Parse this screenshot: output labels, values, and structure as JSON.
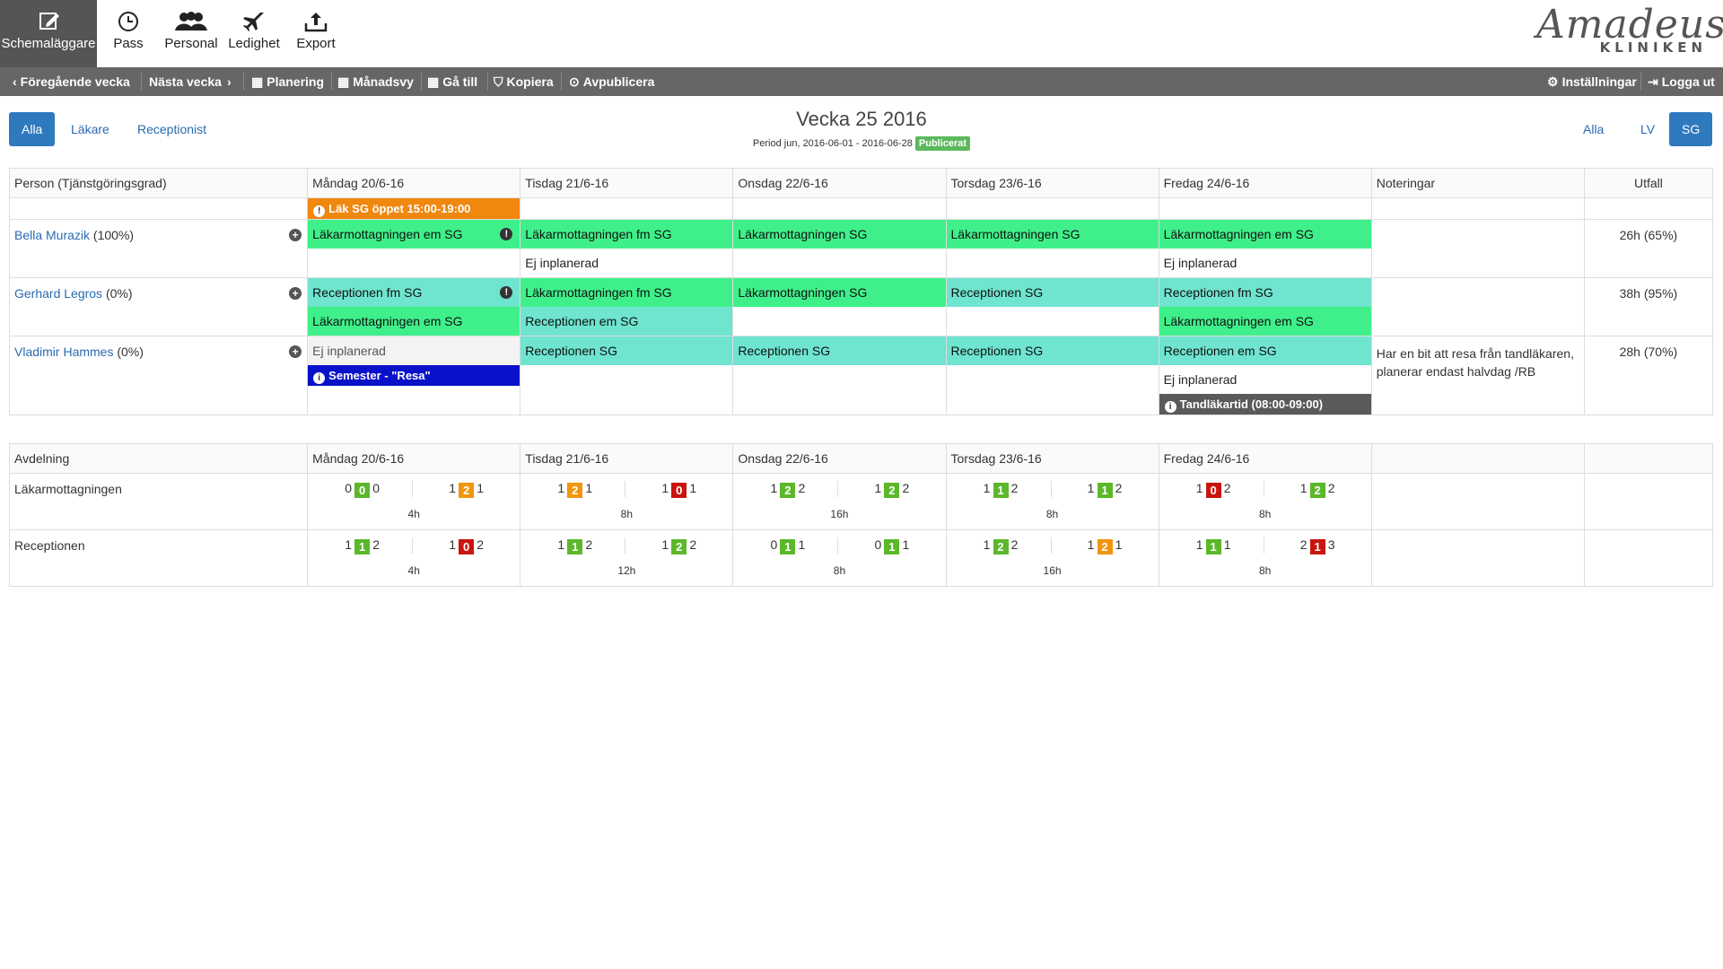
{
  "toolbar": {
    "items": [
      {
        "label": "Schemaläggare",
        "icon": "edit-icon",
        "active": true
      },
      {
        "label": "Pass",
        "icon": "clock-icon"
      },
      {
        "label": "Personal",
        "icon": "people-icon"
      },
      {
        "label": "Ledighet",
        "icon": "airplane-icon"
      },
      {
        "label": "Export",
        "icon": "export-icon"
      }
    ],
    "logo": {
      "script": "Amadeus",
      "sub": "KLINIKEN"
    }
  },
  "navbar": {
    "prev_week": "Föregående vecka",
    "next_week": "Nästa vecka",
    "planning": "Planering",
    "monthview": "Månadsvy",
    "goto": "Gå till",
    "copy": "Kopiera",
    "unpublish": "Avpublicera",
    "settings": "Inställningar",
    "logout": "Logga ut"
  },
  "filters": {
    "left": [
      "Alla",
      "Läkare",
      "Receptionist"
    ],
    "right": [
      "Alla",
      "LV",
      "SG"
    ]
  },
  "week": {
    "title": "Vecka 25 2016",
    "period": "Period jun, 2016-06-01 - 2016-06-28",
    "status": "Publicerat"
  },
  "schedule": {
    "headers": [
      "Person (Tjänstgöringsgrad)",
      "Måndag 20/6-16",
      "Tisdag 21/6-16",
      "Onsdag 22/6-16",
      "Torsdag 23/6-16",
      "Fredag 24/6-16",
      "Noteringar",
      "Utfall"
    ],
    "day_badge": {
      "text": "Läk SG öppet 15:00-19:00"
    },
    "people": [
      {
        "name": "Bella Murazik",
        "pct": "(100%)",
        "days": [
          [
            {
              "text": "Läkarmottagningen em SG",
              "kind": "g",
              "warn": true
            }
          ],
          [
            {
              "text": "Läkarmottagningen fm SG",
              "kind": "g"
            },
            {
              "text": "Ej inplanerad",
              "kind": "plain"
            }
          ],
          [
            {
              "text": "Läkarmottagningen SG",
              "kind": "g"
            }
          ],
          [
            {
              "text": "Läkarmottagningen SG",
              "kind": "g"
            }
          ],
          [
            {
              "text": "Läkarmottagningen em SG",
              "kind": "g"
            },
            {
              "text": "Ej inplanerad",
              "kind": "plain"
            }
          ]
        ],
        "note": "",
        "utfall": "26h (65%)"
      },
      {
        "name": "Gerhard Legros",
        "pct": "(0%)",
        "days": [
          [
            {
              "text": "Receptionen fm SG",
              "kind": "t",
              "warn": true
            },
            {
              "text": "Läkarmottagningen em SG",
              "kind": "g"
            }
          ],
          [
            {
              "text": "Läkarmottagningen fm SG",
              "kind": "g"
            },
            {
              "text": "Receptionen em SG",
              "kind": "t"
            }
          ],
          [
            {
              "text": "Läkarmottagningen SG",
              "kind": "g"
            }
          ],
          [
            {
              "text": "Receptionen SG",
              "kind": "t"
            }
          ],
          [
            {
              "text": "Receptionen fm SG",
              "kind": "t"
            },
            {
              "text": "Läkarmottagningen em SG",
              "kind": "g"
            }
          ]
        ],
        "note": "",
        "utfall": "38h (95%)"
      },
      {
        "name": "Vladimir Hammes",
        "pct": "(0%)",
        "days": [
          [
            {
              "text": "Ej inplanerad",
              "kind": "grey"
            },
            {
              "text": "Semester - \"Resa\"",
              "kind": "badge-blue"
            }
          ],
          [
            {
              "text": "Receptionen SG",
              "kind": "t"
            }
          ],
          [
            {
              "text": "Receptionen SG",
              "kind": "t"
            }
          ],
          [
            {
              "text": "Receptionen SG",
              "kind": "t"
            }
          ],
          [
            {
              "text": "Receptionen em SG",
              "kind": "t"
            },
            {
              "text": "Ej inplanerad",
              "kind": "plain"
            },
            {
              "text": "Tandläkartid (08:00-09:00)",
              "kind": "badge-dark"
            }
          ]
        ],
        "note": "Har en bit att resa från tandläkaren, planerar endast halvdag /RB",
        "utfall": "28h (70%)"
      }
    ]
  },
  "departments": {
    "headers": [
      "Avdelning",
      "Måndag 20/6-16",
      "Tisdag 21/6-16",
      "Onsdag 22/6-16",
      "Torsdag 23/6-16",
      "Fredag 24/6-16"
    ],
    "rows": [
      {
        "name": "Läkarmottagningen",
        "days": [
          {
            "a": [
              "0",
              "0",
              "0",
              "green"
            ],
            "b": [
              "1",
              "2",
              "1",
              "orange"
            ],
            "hours": "4h"
          },
          {
            "a": [
              "1",
              "2",
              "1",
              "orange"
            ],
            "b": [
              "1",
              "0",
              "1",
              "red"
            ],
            "hours": "8h"
          },
          {
            "a": [
              "1",
              "2",
              "2",
              "green"
            ],
            "b": [
              "1",
              "2",
              "2",
              "green"
            ],
            "hours": "16h"
          },
          {
            "a": [
              "1",
              "1",
              "2",
              "green"
            ],
            "b": [
              "1",
              "1",
              "2",
              "green"
            ],
            "hours": "8h"
          },
          {
            "a": [
              "1",
              "0",
              "2",
              "red"
            ],
            "b": [
              "1",
              "2",
              "2",
              "green"
            ],
            "hours": "8h"
          }
        ]
      },
      {
        "name": "Receptionen",
        "days": [
          {
            "a": [
              "1",
              "1",
              "2",
              "green"
            ],
            "b": [
              "1",
              "0",
              "2",
              "red"
            ],
            "hours": "4h"
          },
          {
            "a": [
              "1",
              "1",
              "2",
              "green"
            ],
            "b": [
              "1",
              "2",
              "2",
              "green"
            ],
            "hours": "12h"
          },
          {
            "a": [
              "0",
              "1",
              "1",
              "green"
            ],
            "b": [
              "0",
              "1",
              "1",
              "green"
            ],
            "hours": "8h"
          },
          {
            "a": [
              "1",
              "2",
              "2",
              "green"
            ],
            "b": [
              "1",
              "2",
              "1",
              "orange"
            ],
            "hours": "16h"
          },
          {
            "a": [
              "1",
              "1",
              "1",
              "green"
            ],
            "b": [
              "2",
              "1",
              "3",
              "red"
            ],
            "hours": "8h"
          }
        ]
      }
    ]
  }
}
